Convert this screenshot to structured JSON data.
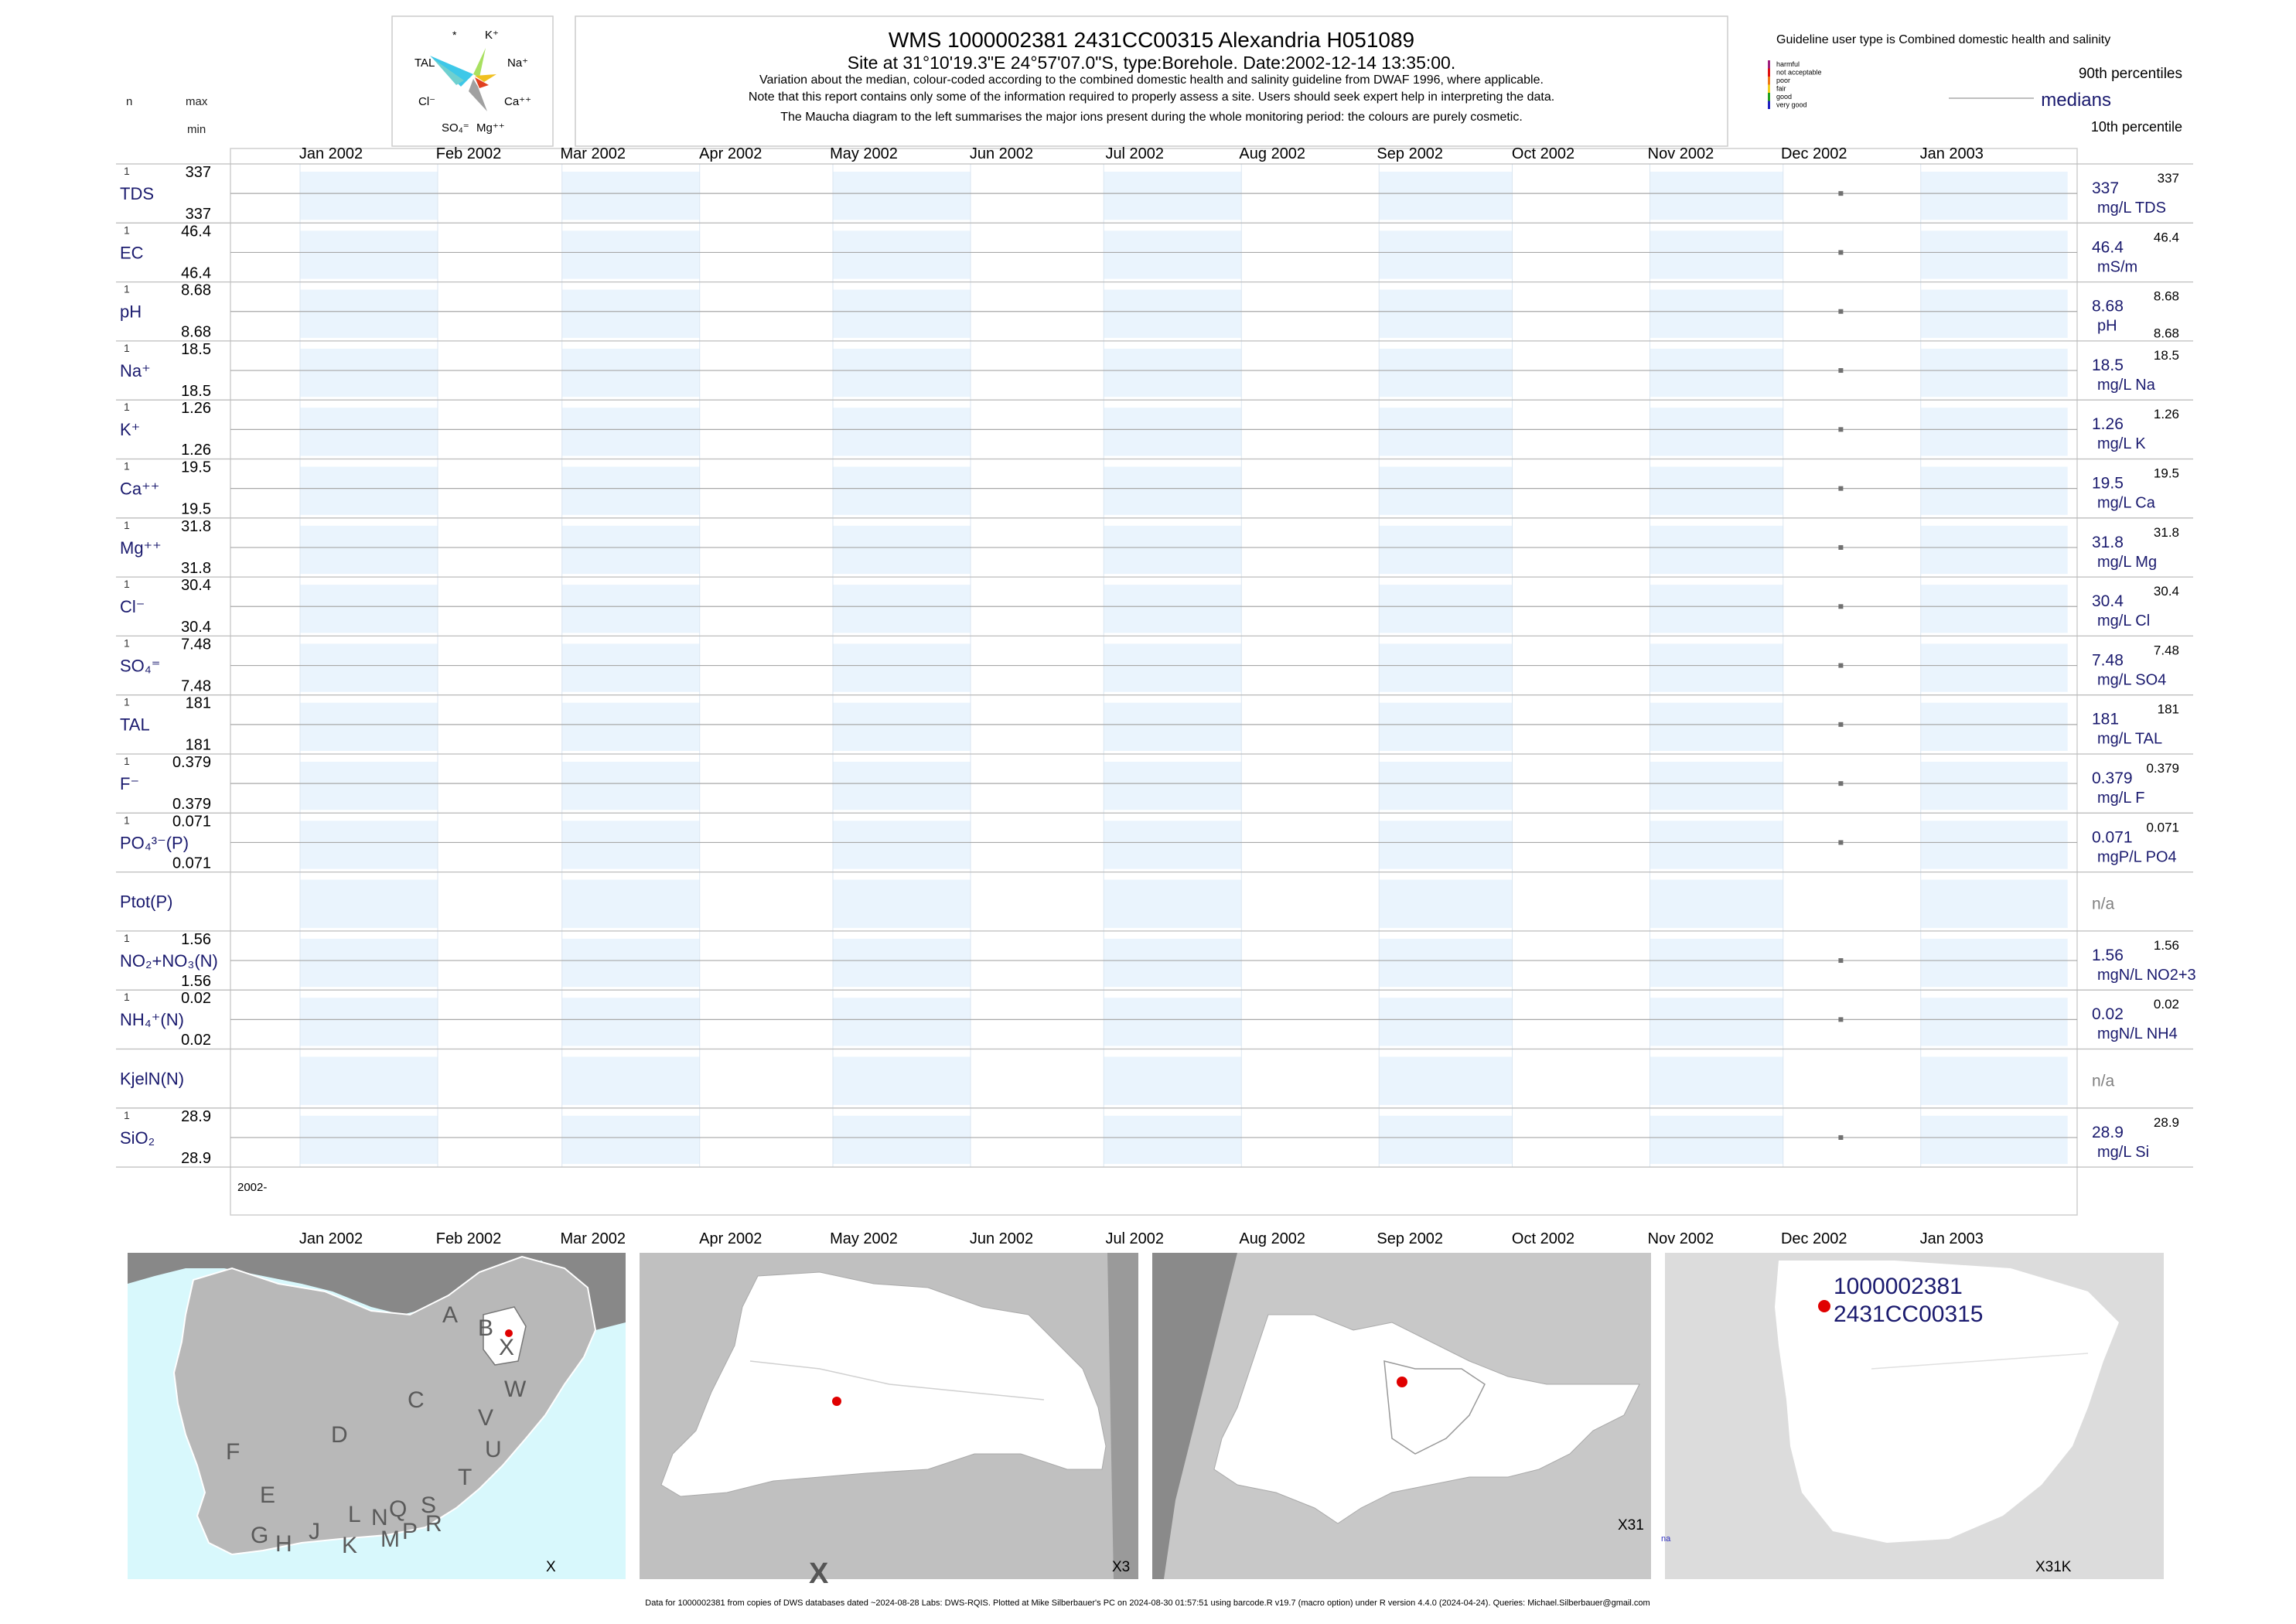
{
  "header": {
    "title": "WMS 1000002381 2431CC00315 Alexandria H051089",
    "subtitle": "Site at 31°10'19.3\"E 24°57'07.0\"S, type:Borehole. Date:2002-12-14 13:35:00.",
    "notes": [
      "Variation about the median,  colour-coded according to the combined domestic health and salinity guideline from DWAF 1996, where applicable.",
      "Note that this report contains only some of the information required to properly assess a site. Users should seek expert help in interpreting the data.",
      "The Maucha diagram to the left summarises the major ions present during the whole monitoring period: the colours are purely cosmetic."
    ]
  },
  "column_labels": {
    "n": "n",
    "max": "max",
    "min": "min"
  },
  "maucha": {
    "labels": [
      {
        "id": "star",
        "text": "*"
      },
      {
        "id": "k",
        "text": "K⁺"
      },
      {
        "id": "tal",
        "text": "TAL"
      },
      {
        "id": "na",
        "text": "Na⁺"
      },
      {
        "id": "cl",
        "text": "Cl⁻"
      },
      {
        "id": "ca",
        "text": "Ca⁺⁺"
      },
      {
        "id": "so4",
        "text": "SO₄⁼"
      },
      {
        "id": "mg",
        "text": "Mg⁺⁺"
      }
    ],
    "colors": [
      "#3ec8e8",
      "#a8e060",
      "#f0c020",
      "#e04020",
      "#a0a0a0",
      "#6fd0d0"
    ]
  },
  "legend": {
    "title": "Guideline user type is Combined domestic health and salinity",
    "categories": [
      {
        "label": "harmful",
        "color": "#a0207f"
      },
      {
        "label": "not acceptable",
        "color": "#e01010"
      },
      {
        "label": "poor",
        "color": "#f07818"
      },
      {
        "label": "fair",
        "color": "#f0d020"
      },
      {
        "label": "good",
        "color": "#20a020"
      },
      {
        "label": "very good",
        "color": "#2020c0"
      }
    ],
    "p90": "90th percentiles",
    "medians": "medians",
    "p10": "10th percentile"
  },
  "chart_data": {
    "type": "scatter",
    "x_range": [
      "2002-01-01",
      "2003-01-31"
    ],
    "months": [
      "Jan 2002",
      "Feb 2002",
      "Mar 2002",
      "Apr 2002",
      "May 2002",
      "Jun 2002",
      "Jul 2002",
      "Aug 2002",
      "Sep 2002",
      "Oct 2002",
      "Nov 2002",
      "Dec 2002",
      "Jan 2003"
    ],
    "year_label": "2002-",
    "sample_date": "2002-12-14",
    "series": [
      {
        "name": "TDS",
        "n": "1",
        "max": "337",
        "min": "337",
        "median": "337",
        "unit": "mg/L TDS",
        "p90": "337",
        "p10": "",
        "value": 337
      },
      {
        "name": "EC",
        "n": "1",
        "max": "46.4",
        "min": "46.4",
        "median": "46.4",
        "unit": "mS/m",
        "p90": "46.4",
        "p10": "",
        "value": 46.4
      },
      {
        "name": "pH",
        "n": "1",
        "max": "8.68",
        "min": "8.68",
        "median": "8.68",
        "unit": "pH",
        "p90": "8.68",
        "p10": "8.68",
        "value": 8.68
      },
      {
        "name": "Na⁺",
        "n": "1",
        "max": "18.5",
        "min": "18.5",
        "median": "18.5",
        "unit": "mg/L Na",
        "p90": "18.5",
        "p10": "",
        "value": 18.5
      },
      {
        "name": "K⁺",
        "n": "1",
        "max": "1.26",
        "min": "1.26",
        "median": "1.26",
        "unit": "mg/L K",
        "p90": "1.26",
        "p10": "",
        "value": 1.26
      },
      {
        "name": "Ca⁺⁺",
        "n": "1",
        "max": "19.5",
        "min": "19.5",
        "median": "19.5",
        "unit": "mg/L Ca",
        "p90": "19.5",
        "p10": "",
        "value": 19.5
      },
      {
        "name": "Mg⁺⁺",
        "n": "1",
        "max": "31.8",
        "min": "31.8",
        "median": "31.8",
        "unit": "mg/L Mg",
        "p90": "31.8",
        "p10": "",
        "value": 31.8
      },
      {
        "name": "Cl⁻",
        "n": "1",
        "max": "30.4",
        "min": "30.4",
        "median": "30.4",
        "unit": "mg/L Cl",
        "p90": "30.4",
        "p10": "",
        "value": 30.4
      },
      {
        "name": "SO₄⁼",
        "n": "1",
        "max": "7.48",
        "min": "7.48",
        "median": "7.48",
        "unit": "mg/L SO4",
        "p90": "7.48",
        "p10": "",
        "value": 7.48
      },
      {
        "name": "TAL",
        "n": "1",
        "max": "181",
        "min": "181",
        "median": "181",
        "unit": "mg/L TAL",
        "p90": "181",
        "p10": "",
        "value": 181
      },
      {
        "name": "F⁻",
        "n": "1",
        "max": "0.379",
        "min": "0.379",
        "median": "0.379",
        "unit": "mg/L F",
        "p90": "0.379",
        "p10": "",
        "value": 0.379
      },
      {
        "name": "PO₄³⁻(P)",
        "n": "1",
        "max": "0.071",
        "min": "0.071",
        "median": "0.071",
        "unit": "mgP/L PO4",
        "p90": "0.071",
        "p10": "",
        "value": 0.071
      },
      {
        "name": "Ptot(P)",
        "n": "",
        "max": "",
        "min": "",
        "median": "n/a",
        "unit": "",
        "p90": "",
        "p10": "",
        "value": null
      },
      {
        "name": "NO₂+NO₃(N)",
        "n": "1",
        "max": "1.56",
        "min": "1.56",
        "median": "1.56",
        "unit": "mgN/L NO2+3",
        "p90": "1.56",
        "p10": "",
        "value": 1.56
      },
      {
        "name": "NH₄⁺(N)",
        "n": "1",
        "max": "0.02",
        "min": "0.02",
        "median": "0.02",
        "unit": "mgN/L NH4",
        "p90": "0.02",
        "p10": "",
        "value": 0.02
      },
      {
        "name": "KjelN(N)",
        "n": "",
        "max": "",
        "min": "",
        "median": "n/a",
        "unit": "",
        "p90": "",
        "p10": "",
        "value": null
      },
      {
        "name": "SiO₂",
        "n": "1",
        "max": "28.9",
        "min": "28.9",
        "median": "28.9",
        "unit": "mg/L Si",
        "p90": "28.9",
        "p10": "",
        "value": 28.9
      }
    ]
  },
  "maps": {
    "map1": {
      "regions": [
        "A",
        "B",
        "X",
        "C",
        "W",
        "D",
        "V",
        "U",
        "F",
        "T",
        "E",
        "L",
        "N",
        "Q",
        "S",
        "G",
        "H",
        "J",
        "K",
        "M",
        "P",
        "R"
      ],
      "corner": "X",
      "land": "#b8b8b8",
      "sea": "#d8f8fc"
    },
    "map2": {
      "big_label": "X",
      "corner": "X3"
    },
    "map3": {
      "corner": "X31"
    },
    "map4": {
      "site_id": "1000002381",
      "site_code": "2431CC00315",
      "corner": "X31K",
      "edge_label": "na"
    }
  },
  "footer": "Data for 1000002381 from copies of DWS databases dated ~2024-08-28 Labs: DWS-RQIS. Plotted at Mike Silberbauer's PC on 2024-08-30 01:57:51 using barcode.R v19.7 (macro option) under R version 4.4.0 (2024-04-24). Queries: Michael.Silberbauer@gmail.com"
}
